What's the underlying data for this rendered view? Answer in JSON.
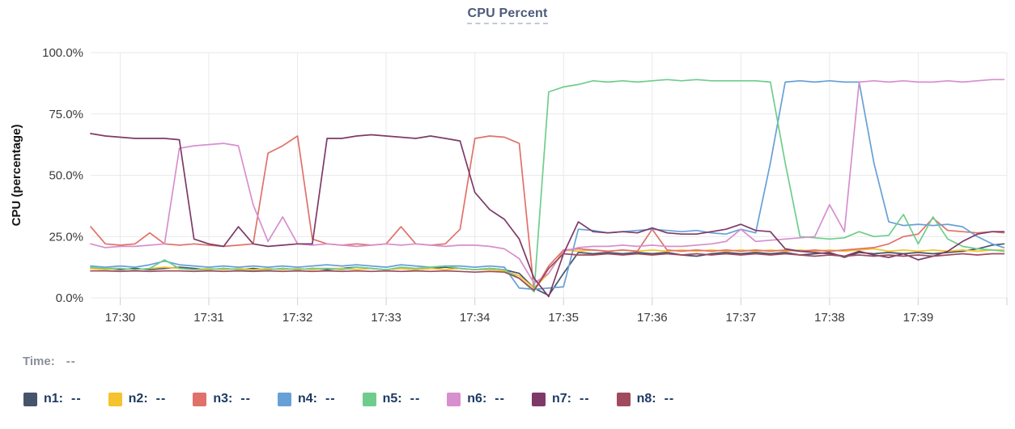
{
  "chart": {
    "title": "CPU Percent"
  },
  "readout": {
    "time_label": "Time:",
    "time_value": "--"
  },
  "legend": {
    "items": [
      {
        "name": "n1",
        "label": "n1:",
        "value": "--",
        "color": "#44546a"
      },
      {
        "name": "n2",
        "label": "n2:",
        "value": "--",
        "color": "#f5c32d"
      },
      {
        "name": "n3",
        "label": "n3:",
        "value": "--",
        "color": "#e0716a"
      },
      {
        "name": "n4",
        "label": "n4:",
        "value": "--",
        "color": "#67a0d6"
      },
      {
        "name": "n5",
        "label": "n5:",
        "value": "--",
        "color": "#6fcd8c"
      },
      {
        "name": "n6",
        "label": "n6:",
        "value": "--",
        "color": "#d78fce"
      },
      {
        "name": "n7",
        "label": "n7:",
        "value": "--",
        "color": "#7d3a68"
      },
      {
        "name": "n8",
        "label": "n8:",
        "value": "--",
        "color": "#a04a5e"
      }
    ]
  },
  "chart_data": {
    "type": "line",
    "title": "CPU Percent",
    "xlabel": "",
    "ylabel": "CPU (percentage)",
    "ylim": [
      0,
      100
    ],
    "x_range": [
      29.667,
      40.0
    ],
    "grid": true,
    "legend_position": "bottom",
    "y_ticks": [
      {
        "v": 0,
        "label": "0.0%"
      },
      {
        "v": 25,
        "label": "25.0%"
      },
      {
        "v": 50,
        "label": "50.0%"
      },
      {
        "v": 75,
        "label": "75.0%"
      },
      {
        "v": 100,
        "label": "100.0%"
      }
    ],
    "x_ticks": [
      {
        "v": 30,
        "label": "17:30"
      },
      {
        "v": 31,
        "label": "17:31"
      },
      {
        "v": 32,
        "label": "17:32"
      },
      {
        "v": 33,
        "label": "17:33"
      },
      {
        "v": 34,
        "label": "17:34"
      },
      {
        "v": 35,
        "label": "17:35"
      },
      {
        "v": 36,
        "label": "17:36"
      },
      {
        "v": 37,
        "label": "17:37"
      },
      {
        "v": 38,
        "label": "17:38"
      },
      {
        "v": 39,
        "label": "17:39"
      },
      {
        "v": 40,
        "label": ""
      }
    ],
    "t": [
      29.667,
      29.833,
      30,
      30.167,
      30.333,
      30.5,
      30.667,
      30.833,
      31,
      31.167,
      31.333,
      31.5,
      31.667,
      31.833,
      32,
      32.167,
      32.333,
      32.5,
      32.667,
      32.833,
      33,
      33.167,
      33.333,
      33.5,
      33.667,
      33.833,
      34,
      34.167,
      34.333,
      34.5,
      34.667,
      34.833,
      35,
      35.167,
      35.333,
      35.5,
      35.667,
      35.833,
      36,
      36.167,
      36.333,
      36.5,
      36.667,
      36.833,
      37,
      37.167,
      37.333,
      37.5,
      37.667,
      37.833,
      38,
      38.167,
      38.333,
      38.5,
      38.667,
      38.833,
      39,
      39.167,
      39.333,
      39.5,
      39.667,
      39.833,
      39.967
    ],
    "series": [
      {
        "name": "n1",
        "color": "#44546a",
        "values": [
          12,
          12,
          11.5,
          12,
          11.5,
          12,
          12.5,
          12,
          11.5,
          12,
          11.5,
          12,
          11.5,
          12,
          11.5,
          12,
          11.5,
          12,
          12.5,
          12,
          11.5,
          12,
          11.5,
          12,
          12.5,
          12,
          11.5,
          12,
          11.5,
          10,
          4,
          1,
          10,
          18.5,
          18,
          18.5,
          18,
          18.5,
          18,
          18.5,
          17.5,
          17,
          18,
          18.5,
          18,
          18.5,
          18,
          18.5,
          17.5,
          18,
          18.5,
          16.5,
          18.5,
          18,
          18.5,
          18,
          18.5,
          18,
          18.5,
          19,
          20,
          21.5,
          22
        ]
      },
      {
        "name": "n2",
        "color": "#f5c32d",
        "values": [
          12,
          11.5,
          12,
          11.5,
          12,
          12.5,
          12,
          11.5,
          12,
          11.5,
          12,
          11.5,
          12,
          11.5,
          12,
          11.5,
          12,
          12,
          11.5,
          12,
          11.5,
          12,
          11.5,
          12,
          11.5,
          12,
          11.5,
          11.5,
          11,
          9,
          4,
          10,
          19.5,
          19,
          19.5,
          19,
          19.5,
          19,
          19.5,
          19,
          19.5,
          19,
          19.5,
          19,
          19.5,
          19,
          19.5,
          19,
          19.5,
          19,
          19.5,
          19,
          19.5,
          20,
          19,
          19.5,
          19,
          19.5,
          19,
          19.5,
          19,
          19.5,
          19.5
        ]
      },
      {
        "name": "n3",
        "color": "#e0716a",
        "values": [
          29,
          22,
          21.5,
          22,
          26.5,
          22,
          21.5,
          22,
          21.5,
          21,
          21.5,
          22,
          59,
          62,
          66,
          24,
          22,
          21.5,
          22,
          21.5,
          22,
          29,
          22,
          21.5,
          22,
          28,
          65,
          66,
          65.5,
          63,
          3,
          13,
          19.5,
          20,
          19.5,
          19,
          19.5,
          19,
          28,
          19.5,
          19,
          19.5,
          19,
          19.5,
          19,
          19.5,
          19,
          19.5,
          19,
          19.5,
          19,
          19.5,
          20,
          20.5,
          22,
          25,
          26,
          32.5,
          27.5,
          27,
          26.5,
          27,
          26.5
        ]
      },
      {
        "name": "n4",
        "color": "#67a0d6",
        "values": [
          13,
          12.5,
          13,
          12.5,
          13.5,
          15,
          13.5,
          13,
          12.5,
          13,
          12.5,
          13,
          12.5,
          13,
          12.5,
          13,
          13.5,
          13,
          13.5,
          13,
          12.5,
          13.5,
          13,
          12.5,
          13,
          13,
          12.5,
          13,
          12.5,
          4,
          3.5,
          4,
          4.5,
          28,
          27.5,
          26.5,
          27,
          27.5,
          28,
          27.5,
          27,
          27.5,
          26.5,
          26,
          28,
          26.5,
          55,
          88,
          88.5,
          88,
          88.5,
          88,
          88,
          55,
          31,
          29.5,
          30,
          29.5,
          30,
          29,
          25,
          22,
          20.5
        ]
      },
      {
        "name": "n5",
        "color": "#6fcd8c",
        "values": [
          12.5,
          12,
          12,
          11.5,
          12,
          15.5,
          12,
          11.5,
          11.5,
          12,
          11.5,
          11,
          11.5,
          12,
          11.5,
          12,
          12,
          11.5,
          12.5,
          12,
          11.5,
          12.5,
          12,
          12.5,
          13,
          12,
          11.5,
          12,
          11.5,
          8,
          2.5,
          84,
          86,
          87,
          88.5,
          88,
          88.5,
          88,
          88.5,
          89,
          88.5,
          89,
          88.5,
          88.5,
          88.5,
          88.5,
          88,
          55,
          25,
          24.5,
          24,
          24.5,
          27,
          25,
          25.5,
          34,
          22,
          33,
          24,
          21,
          20,
          19.5,
          19
        ]
      },
      {
        "name": "n6",
        "color": "#d78fce",
        "values": [
          22,
          20.5,
          21,
          21,
          21.5,
          22,
          61,
          62,
          62.5,
          63,
          62,
          38,
          23,
          33,
          22,
          21.5,
          22,
          21.5,
          21,
          21.5,
          22,
          21.5,
          22,
          21.5,
          21,
          21.5,
          21.5,
          21,
          20,
          16,
          6,
          10,
          19,
          20.5,
          21,
          21,
          21.5,
          21,
          21.5,
          21,
          21,
          21.5,
          22,
          23,
          28,
          23,
          23.5,
          24,
          24.5,
          25,
          38,
          27,
          88,
          88.5,
          88,
          88.5,
          88,
          88,
          88.5,
          88,
          88.5,
          89,
          89
        ]
      },
      {
        "name": "n7",
        "color": "#7d3a68",
        "values": [
          67,
          66,
          65.5,
          65,
          65,
          65,
          64.5,
          24,
          22,
          21,
          29,
          22,
          21,
          21.5,
          22,
          22,
          65,
          65,
          66,
          66.5,
          66,
          65.5,
          65,
          66,
          65,
          64,
          43,
          36,
          32,
          24,
          8,
          0.5,
          18,
          31,
          27,
          26.5,
          27,
          26.5,
          28.5,
          26.5,
          26,
          26,
          27,
          28,
          30,
          27.5,
          27,
          20,
          19,
          18.5,
          18,
          17,
          19,
          17.5,
          16.5,
          18,
          15.5,
          17,
          19,
          23,
          26,
          27,
          27
        ]
      },
      {
        "name": "n8",
        "color": "#a04a5e",
        "values": [
          11,
          11,
          10.8,
          11,
          10.8,
          11,
          11,
          10.8,
          11,
          10.8,
          11,
          10.8,
          11,
          10.8,
          11,
          10.8,
          11,
          10.8,
          11,
          10.8,
          11,
          10.8,
          11,
          10.8,
          11,
          10.8,
          10.5,
          10.8,
          10.5,
          8,
          3,
          12,
          18,
          17.5,
          17.5,
          18,
          17.5,
          18,
          17.5,
          18,
          17.5,
          18,
          17.5,
          18,
          17.5,
          18,
          17.5,
          18,
          17.5,
          17,
          17.5,
          17,
          17.5,
          17,
          17.5,
          17,
          17.5,
          17,
          17.5,
          18,
          17.5,
          18,
          18
        ]
      }
    ]
  }
}
